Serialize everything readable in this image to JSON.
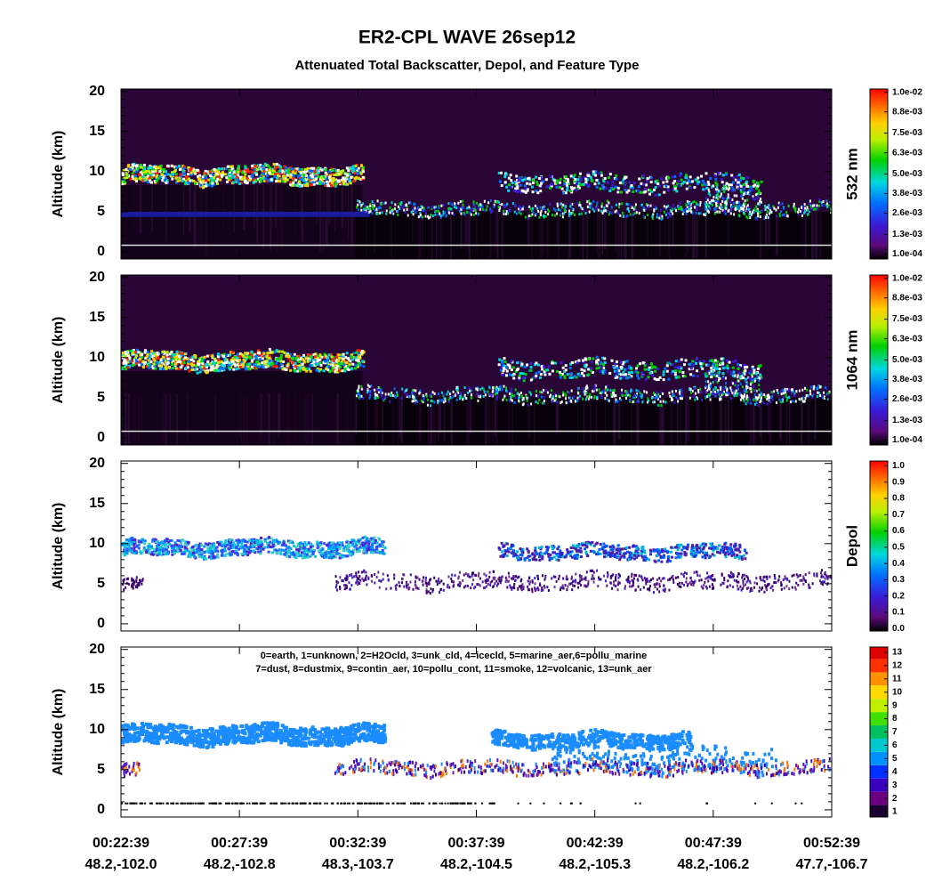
{
  "title": "ER2-CPL WAVE 26sep12",
  "subtitle": "Attenuated Total Backscatter, Depol, and Feature Type",
  "x_tick_labels": {
    "time": [
      "00:22:39",
      "00:27:39",
      "00:32:39",
      "00:37:39",
      "00:42:39",
      "00:47:39",
      "00:52:39"
    ],
    "location": [
      "48.2,-102.0",
      "48.2,-102.8",
      "48.3,-103.7",
      "48.2,-104.5",
      "48.2,-105.3",
      "48.2,-106.2",
      "47.7,-106.7"
    ]
  },
  "chart_data": [
    {
      "type": "heatmap",
      "ylabel": "Altitude (km)",
      "ylim": [
        -0.9,
        20.3
      ],
      "yticks": [
        0,
        5,
        10,
        15,
        20
      ],
      "colorbar": {
        "label": "532 nm",
        "clim": [
          -0.0002,
          0.0102
        ],
        "scheme": "rainbow",
        "ticks": [
          {
            "value": 0.0001,
            "label": "1.0e-04"
          },
          {
            "value": 0.0013,
            "label": "1.3e-03"
          },
          {
            "value": 0.0026,
            "label": "2.6e-03"
          },
          {
            "value": 0.0038,
            "label": "3.8e-03"
          },
          {
            "value": 0.005,
            "label": "5.0e-03"
          },
          {
            "value": 0.0063,
            "label": "6.3e-03"
          },
          {
            "value": 0.0075,
            "label": "7.5e-03"
          },
          {
            "value": 0.0088,
            "label": "8.8e-03"
          },
          {
            "value": 0.01,
            "label": "1.0e-02"
          }
        ]
      }
    },
    {
      "type": "heatmap",
      "ylabel": "Altitude (km)",
      "ylim": [
        -0.9,
        20.3
      ],
      "yticks": [
        0,
        5,
        10,
        15,
        20
      ],
      "colorbar": {
        "label": "1064 nm",
        "clim": [
          -0.0002,
          0.0102
        ],
        "scheme": "rainbow",
        "ticks": [
          {
            "value": 0.0001,
            "label": "1.0e-04"
          },
          {
            "value": 0.0013,
            "label": "1.3e-03"
          },
          {
            "value": 0.0026,
            "label": "2.6e-03"
          },
          {
            "value": 0.0038,
            "label": "3.8e-03"
          },
          {
            "value": 0.005,
            "label": "5.0e-03"
          },
          {
            "value": 0.0063,
            "label": "6.3e-03"
          },
          {
            "value": 0.0075,
            "label": "7.5e-03"
          },
          {
            "value": 0.0088,
            "label": "8.8e-03"
          },
          {
            "value": 0.01,
            "label": "1.0e-02"
          }
        ]
      }
    },
    {
      "type": "heatmap",
      "ylabel": "Altitude (km)",
      "ylim": [
        -0.9,
        20.3
      ],
      "yticks": [
        0,
        5,
        10,
        15,
        20
      ],
      "colorbar": {
        "label": "Depol",
        "clim": [
          -0.015,
          1.03
        ],
        "scheme": "rainbow",
        "ticks": [
          {
            "value": 0,
            "label": "0.0"
          },
          {
            "value": 0.1,
            "label": "0.1"
          },
          {
            "value": 0.2,
            "label": "0.2"
          },
          {
            "value": 0.3,
            "label": "0.3"
          },
          {
            "value": 0.4,
            "label": "0.4"
          },
          {
            "value": 0.5,
            "label": "0.5"
          },
          {
            "value": 0.6,
            "label": "0.6"
          },
          {
            "value": 0.7,
            "label": "0.7"
          },
          {
            "value": 0.8,
            "label": "0.8"
          },
          {
            "value": 0.9,
            "label": "0.9"
          },
          {
            "value": 1,
            "label": "1.0"
          }
        ]
      }
    },
    {
      "type": "heatmap",
      "ylabel": "Altitude (km)",
      "ylim": [
        -0.9,
        20.3
      ],
      "yticks": [
        0,
        5,
        10,
        15,
        20
      ],
      "legend_text": [
        "0=earth, 1=unknown, 2=H2Ocld, 3=unk_cld, 4=icecld, 5=marine_aer,6=pollu_marine",
        "7=dust, 8=dustmix, 9=contin_aer, 10=pollu_cont, 11=smoke, 12=volcanic, 13=unk_aer"
      ],
      "colorbar": {
        "clim": [
          0.6,
          13.4
        ],
        "scheme": "discrete",
        "ticks": [
          1,
          2,
          3,
          4,
          5,
          6,
          7,
          8,
          9,
          10,
          11,
          12,
          13
        ]
      }
    }
  ]
}
